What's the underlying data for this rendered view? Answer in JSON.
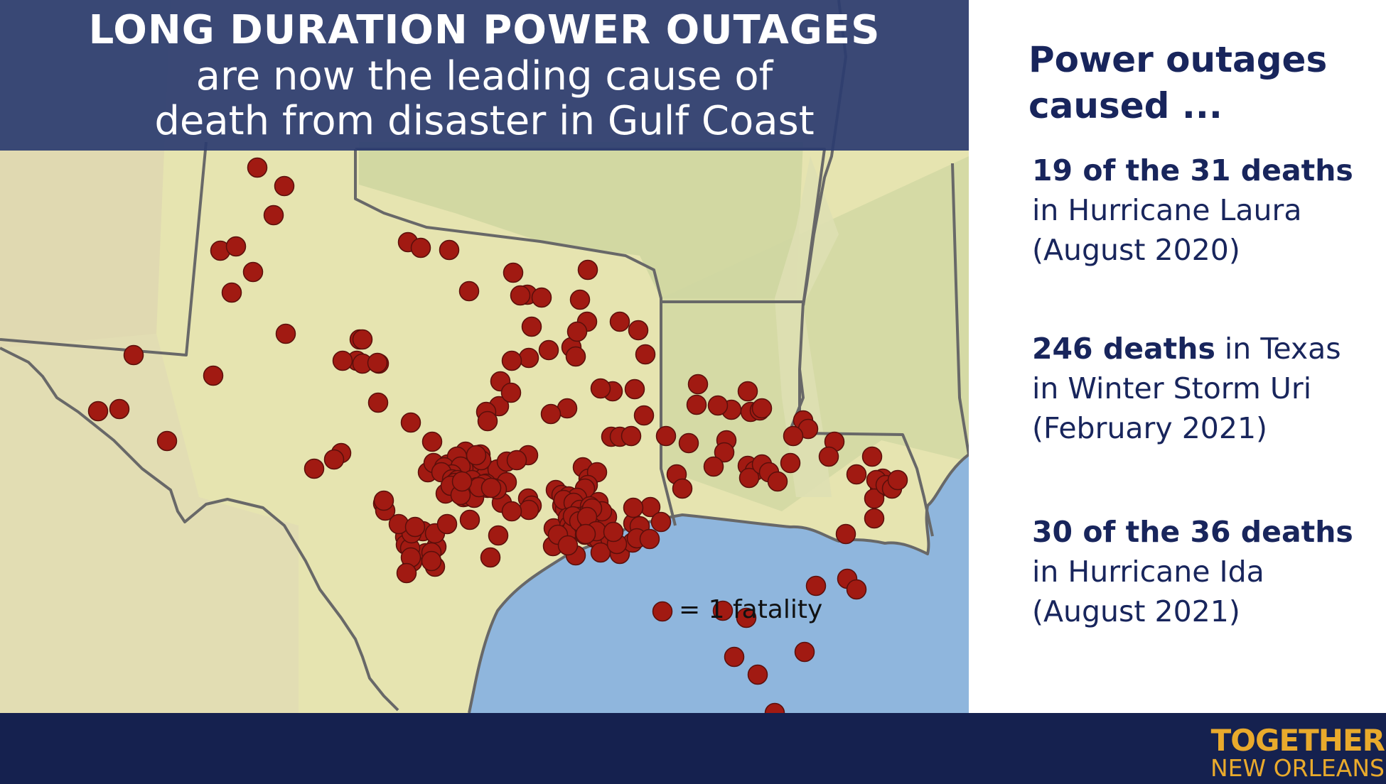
{
  "headline": {
    "bold": "LONG DURATION POWER OUTAGES",
    "line2": "are now the leading cause of",
    "line3": "death from disaster in Gulf Coast"
  },
  "legend": {
    "label": "= 1 fatality"
  },
  "side_panel": {
    "title": "Power outages caused ...",
    "stats": [
      {
        "bold": "19 of the 31 deaths",
        "rest": " in Hurricane Laura (August 2020)"
      },
      {
        "bold": "246 deaths",
        "rest": " in Texas in Winter Storm Uri (February 2021)"
      },
      {
        "bold": "30 of the 36 deaths",
        "rest": " in Hurricane Ida (August 2021)"
      }
    ]
  },
  "logo": {
    "top": "TOGETHER",
    "bottom": "NEW ORLEANS"
  },
  "colors": {
    "fatality_marker": "#a11a12",
    "banner": "#2c3c70",
    "text_navy": "#18255c",
    "footer": "#15214f",
    "logo_gold": "#e9aa2c",
    "gulf_water": "#8fb6dd",
    "land": "#e6e4b0"
  }
}
